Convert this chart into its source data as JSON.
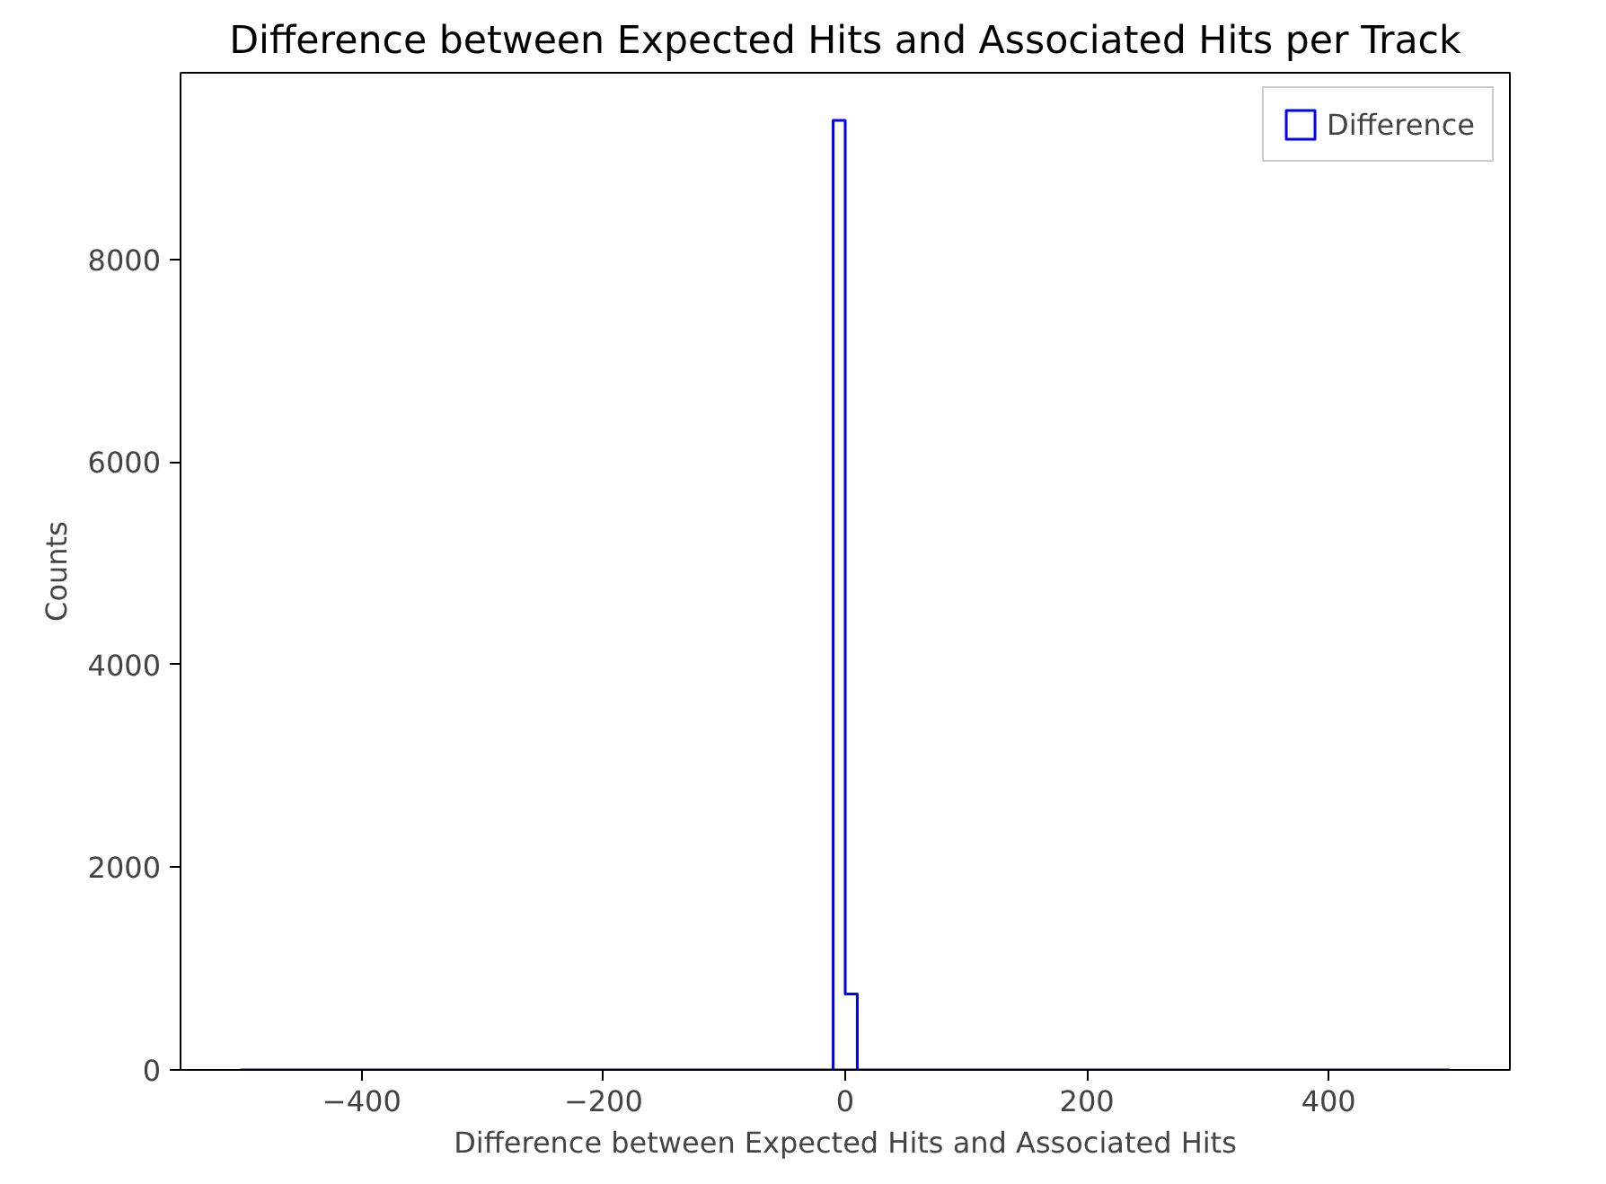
{
  "chart_data": {
    "type": "histogram",
    "title": "Difference between Expected Hits and Associated Hits per Track",
    "xlabel": "Difference between Expected Hits and Associated Hits",
    "ylabel": "Counts",
    "bins": [
      -500,
      -490,
      -480,
      -470,
      -460,
      -450,
      -440,
      -430,
      -420,
      -410,
      -400,
      -390,
      -380,
      -370,
      -360,
      -350,
      -340,
      -330,
      -320,
      -310,
      -300,
      -290,
      -280,
      -270,
      -260,
      -250,
      -240,
      -230,
      -220,
      -210,
      -200,
      -190,
      -180,
      -170,
      -160,
      -150,
      -140,
      -130,
      -120,
      -110,
      -100,
      -90,
      -80,
      -70,
      -60,
      -50,
      -40,
      -30,
      -20,
      -10,
      0,
      10,
      20,
      30,
      40,
      50,
      60,
      70,
      80,
      90,
      100,
      110,
      120,
      130,
      140,
      150,
      160,
      170,
      180,
      190,
      200,
      210,
      220,
      230,
      240,
      250,
      260,
      270,
      280,
      290,
      300,
      310,
      320,
      330,
      340,
      350,
      360,
      370,
      380,
      390,
      400,
      410,
      420,
      430,
      440,
      450,
      460,
      470,
      480,
      490,
      500
    ],
    "series": [
      {
        "name": "Difference",
        "color": "#0000ff",
        "values": [
          0,
          0,
          0,
          0,
          0,
          0,
          0,
          0,
          0,
          0,
          0,
          0,
          0,
          0,
          0,
          0,
          0,
          0,
          0,
          0,
          0,
          0,
          0,
          0,
          0,
          0,
          0,
          0,
          0,
          0,
          0,
          0,
          0,
          0,
          0,
          0,
          0,
          0,
          0,
          0,
          0,
          0,
          0,
          0,
          0,
          0,
          0,
          0,
          0,
          9370,
          750,
          0,
          0,
          0,
          0,
          0,
          0,
          0,
          0,
          0,
          0,
          0,
          0,
          0,
          0,
          0,
          0,
          0,
          0,
          0,
          0,
          0,
          0,
          0,
          0,
          0,
          0,
          0,
          0,
          0,
          0,
          0,
          0,
          0,
          0,
          0,
          0,
          0,
          0,
          0,
          0,
          0,
          0,
          0,
          0,
          0,
          0,
          0,
          0,
          0
        ]
      }
    ],
    "xlim": [
      -550,
      550
    ],
    "ylim": [
      0,
      9840
    ],
    "xticks": [
      -400,
      -200,
      0,
      200,
      400
    ],
    "yticks": [
      0,
      2000,
      4000,
      6000,
      8000
    ],
    "grid": false,
    "legend": "top right"
  }
}
